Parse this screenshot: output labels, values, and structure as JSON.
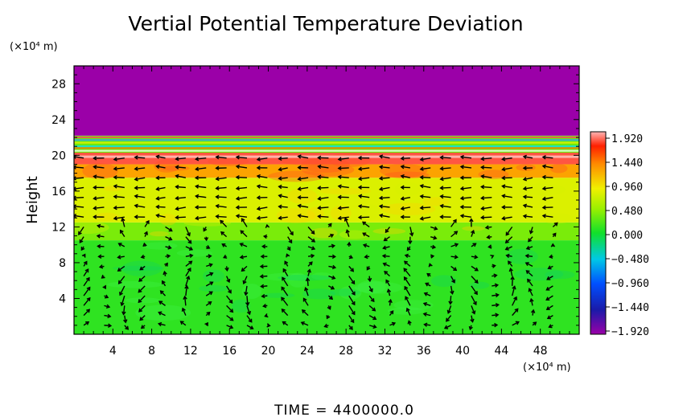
{
  "chart_data": {
    "type": "heatmap",
    "title": "Vertial Potential Temperature Deviation",
    "ylabel": "Height",
    "y_unit": "(×10⁴ m)",
    "x_unit": "(×10⁴ m)",
    "xlim": [
      0,
      52
    ],
    "ylim": [
      0,
      30
    ],
    "x_ticks": [
      4,
      8,
      12,
      16,
      20,
      24,
      28,
      32,
      36,
      40,
      44,
      48
    ],
    "y_ticks": [
      4,
      8,
      12,
      16,
      20,
      24,
      28
    ],
    "colorbar": {
      "min": -1.92,
      "max": 1.92,
      "ticks": [
        "1.920",
        "1.440",
        "0.960",
        "0.480",
        "0.000",
        "−0.480",
        "−0.960",
        "−1.440",
        "−1.920"
      ]
    },
    "value_layers": [
      {
        "y_from": 0,
        "y_to": 10.5,
        "value": 0.1
      },
      {
        "y_from": 10.5,
        "y_to": 12.5,
        "value": 0.35
      },
      {
        "y_from": 12.5,
        "y_to": 17.5,
        "value": 0.75
      },
      {
        "y_from": 17.5,
        "y_to": 19,
        "value": 1.2
      },
      {
        "y_from": 19,
        "y_to": 20.3,
        "value": 1.75
      },
      {
        "y_from": 20.3,
        "y_to": 22.2,
        "value": 0.3
      },
      {
        "y_from": 22.2,
        "y_to": 30,
        "value": -1.92
      }
    ],
    "vectors": "wind vector field overlay (arrows) below 21 height",
    "footer": "TIME  =  4400000.0"
  }
}
